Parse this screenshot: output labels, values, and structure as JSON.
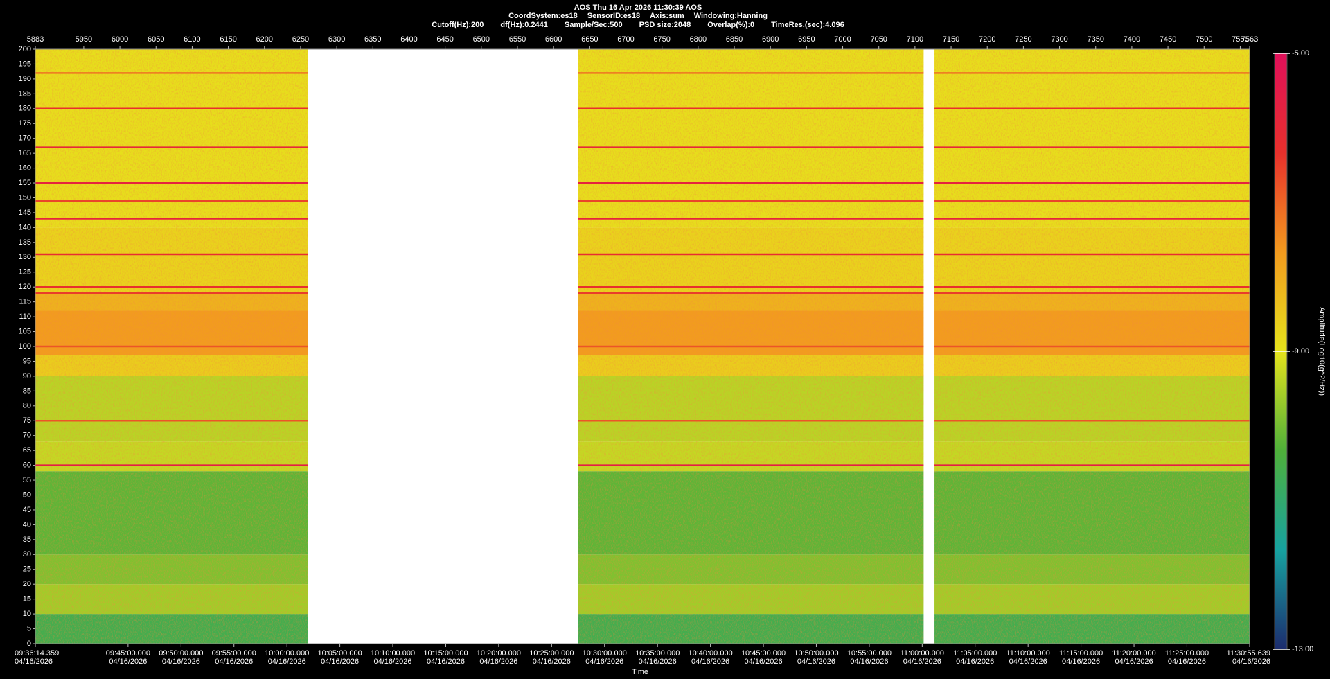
{
  "chart_data": {
    "type": "spectrogram",
    "title": "AOS  Thu 16 Apr 2026 11:30:39  AOS",
    "subtitle_items": [
      "CoordSystem:es18",
      "SensorID:es18",
      "Axis:sum",
      "Windowing:Hanning"
    ],
    "settings_items": [
      "Cutoff(Hz):200",
      "df(Hz):0.2441",
      "Sample/Sec:500",
      "PSD size:2048",
      "Overlap(%):0",
      "TimeRes.(sec):4.096"
    ],
    "xlabel": "Time",
    "colorbar_label": "Amplitude(Log10(g^2/Hz))",
    "xlim": [
      5883,
      7563
    ],
    "xticks": [
      5883,
      5950,
      6000,
      6050,
      6100,
      6150,
      6200,
      6250,
      6300,
      6350,
      6400,
      6450,
      6500,
      6550,
      6600,
      6650,
      6700,
      6750,
      6800,
      6850,
      6900,
      6950,
      7000,
      7050,
      7100,
      7150,
      7200,
      7250,
      7300,
      7350,
      7400,
      7450,
      7500,
      7550,
      7563
    ],
    "x2ticks": [
      {
        "value": 5883,
        "label": "09:36:14.359"
      },
      {
        "value": 6011.3,
        "label": "09:45:00.000"
      },
      {
        "value": 6084.6,
        "label": "09:50:00.000"
      },
      {
        "value": 6157.8,
        "label": "09:55:00.000"
      },
      {
        "value": 6231.1,
        "label": "10:00:00.000"
      },
      {
        "value": 6304.3,
        "label": "10:05:00.000"
      },
      {
        "value": 6377.5,
        "label": "10:10:00.000"
      },
      {
        "value": 6450.8,
        "label": "10:15:00.000"
      },
      {
        "value": 6524.0,
        "label": "10:20:00.000"
      },
      {
        "value": 6597.3,
        "label": "10:25:00.000"
      },
      {
        "value": 6670.5,
        "label": "10:30:00.000"
      },
      {
        "value": 6743.8,
        "label": "10:35:00.000"
      },
      {
        "value": 6817.0,
        "label": "10:40:00.000"
      },
      {
        "value": 6890.3,
        "label": "10:45:00.000"
      },
      {
        "value": 6963.5,
        "label": "10:50:00.000"
      },
      {
        "value": 7036.8,
        "label": "10:55:00.000"
      },
      {
        "value": 7110.0,
        "label": "11:00:00.000"
      },
      {
        "value": 7183.2,
        "label": "11:05:00.000"
      },
      {
        "value": 7256.5,
        "label": "11:10:00.000"
      },
      {
        "value": 7329.7,
        "label": "11:15:00.000"
      },
      {
        "value": 7403.0,
        "label": "11:20:00.000"
      },
      {
        "value": 7476.2,
        "label": "11:25:00.000"
      },
      {
        "value": 7563,
        "label": "11:30:55.639"
      }
    ],
    "x2tick_dates": [
      "04/16/2026",
      "04/16/2026",
      "04/16/2026",
      "04/16/2026",
      "04/16/2026",
      "04/16/2026",
      "04/16/2026",
      "04/16/2026",
      "04/16/2026",
      "04/16/2026",
      "04/16/2026",
      "04/16/2026",
      "04/16/2026",
      "04/16/2026",
      "04/16/2026",
      "04/16/2026",
      "04/16/2026",
      "04/16/2026",
      "04/16/2026",
      "04/16/2026",
      "04/16/2026",
      "04/16/2026",
      "04/16/2026"
    ],
    "ylim": [
      0,
      200
    ],
    "yticks": [
      0,
      5,
      10,
      15,
      20,
      25,
      30,
      35,
      40,
      45,
      50,
      55,
      60,
      65,
      70,
      75,
      80,
      85,
      90,
      95,
      100,
      105,
      110,
      115,
      120,
      125,
      130,
      135,
      140,
      145,
      150,
      155,
      160,
      165,
      170,
      175,
      180,
      185,
      190,
      195,
      200
    ],
    "clim": [
      -13,
      -5
    ],
    "cticks": [
      {
        "value": -5,
        "label": "-5.00"
      },
      {
        "value": -9,
        "label": "-9.00"
      },
      {
        "value": -13,
        "label": "-13.00"
      }
    ],
    "colormap": [
      "#1c2c6e",
      "#17a2a0",
      "#4fb03a",
      "#e6e31c",
      "#f29a1e",
      "#e8302c",
      "#e0105a"
    ],
    "segments": [
      [
        5883,
        6260
      ],
      [
        6634,
        7112
      ],
      [
        7127,
        7563
      ]
    ],
    "bands": [
      {
        "low": 0,
        "high": 10,
        "amplitude": -10.6
      },
      {
        "low": 10,
        "high": 20,
        "amplitude": -9.6
      },
      {
        "low": 20,
        "high": 30,
        "amplitude": -9.9
      },
      {
        "low": 30,
        "high": 58,
        "amplitude": -10.2
      },
      {
        "low": 58,
        "high": 68,
        "amplitude": -9.3
      },
      {
        "low": 68,
        "high": 90,
        "amplitude": -9.4
      },
      {
        "low": 90,
        "high": 97,
        "amplitude": -8.6
      },
      {
        "low": 97,
        "high": 112,
        "amplitude": -7.7
      },
      {
        "low": 112,
        "high": 118,
        "amplitude": -8.1
      },
      {
        "low": 118,
        "high": 140,
        "amplitude": -8.7
      },
      {
        "low": 140,
        "high": 200,
        "amplitude": -8.9
      }
    ],
    "lines": [
      {
        "frequency": 60,
        "amplitude": -5.6
      },
      {
        "frequency": 75,
        "amplitude": -6.8
      },
      {
        "frequency": 100,
        "amplitude": -6.8
      },
      {
        "frequency": 118,
        "amplitude": -6.5
      },
      {
        "frequency": 120,
        "amplitude": -6.3
      },
      {
        "frequency": 131,
        "amplitude": -6.2
      },
      {
        "frequency": 143,
        "amplitude": -5.8
      },
      {
        "frequency": 149,
        "amplitude": -6.6
      },
      {
        "frequency": 155,
        "amplitude": -5.8
      },
      {
        "frequency": 167,
        "amplitude": -6.0
      },
      {
        "frequency": 180,
        "amplitude": -6.3
      },
      {
        "frequency": 192,
        "amplitude": -7.2
      }
    ]
  }
}
